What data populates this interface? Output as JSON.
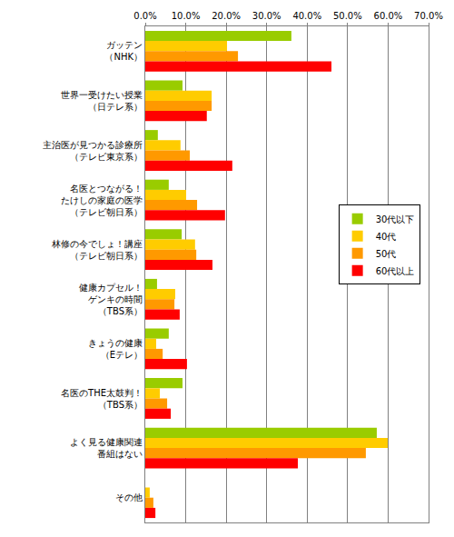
{
  "chart_data": {
    "type": "bar",
    "orientation": "horizontal",
    "categories": [
      "ガッテン\n（NHK）",
      "世界一受けたい授業\n（日テレ系）",
      "主治医が見つかる診療所\n（テレビ東京系）",
      "名医とつながる！\nたけしの家庭の医学\n（テレビ朝日系）",
      "林修の今でしょ！講座\n（テレビ朝日系）",
      "健康カプセル！\nゲンキの時間\n（TBS系）",
      "きょうの健康\n（Eテレ）",
      "名医のTHE太鼓判！\n（TBS系）",
      "よく見る健康関連\n番組はない",
      "その他"
    ],
    "series": [
      {
        "name": "30代以下",
        "color": "#99cc00",
        "values": [
          36.1,
          9.2,
          3.1,
          5.8,
          9.0,
          2.9,
          5.8,
          9.2,
          57.2,
          0.0
        ]
      },
      {
        "name": "40代",
        "color": "#ffcc00",
        "values": [
          20.2,
          16.4,
          8.7,
          10.1,
          12.3,
          7.4,
          2.7,
          3.6,
          59.9,
          1.1
        ]
      },
      {
        "name": "50代",
        "color": "#ff9900",
        "values": [
          22.9,
          16.4,
          11.0,
          12.8,
          12.6,
          7.2,
          4.3,
          5.4,
          54.5,
          2.0
        ]
      },
      {
        "name": "60代以上",
        "color": "#ff0000",
        "values": [
          46.0,
          15.2,
          21.5,
          19.7,
          16.6,
          8.5,
          10.3,
          6.3,
          37.7,
          2.5
        ]
      }
    ],
    "xlim": [
      0,
      70
    ],
    "xticks": [
      {
        "value": 0,
        "label": "0.0%"
      },
      {
        "value": 10,
        "label": "10.0%"
      },
      {
        "value": 20,
        "label": "20.0%"
      },
      {
        "value": 30,
        "label": "30.0%"
      },
      {
        "value": 40,
        "label": "40.0%"
      },
      {
        "value": 50,
        "label": "50.0%"
      },
      {
        "value": 60,
        "label": "60.0%"
      },
      {
        "value": 70,
        "label": "70.0%"
      }
    ],
    "grid": true,
    "legend": "right"
  }
}
